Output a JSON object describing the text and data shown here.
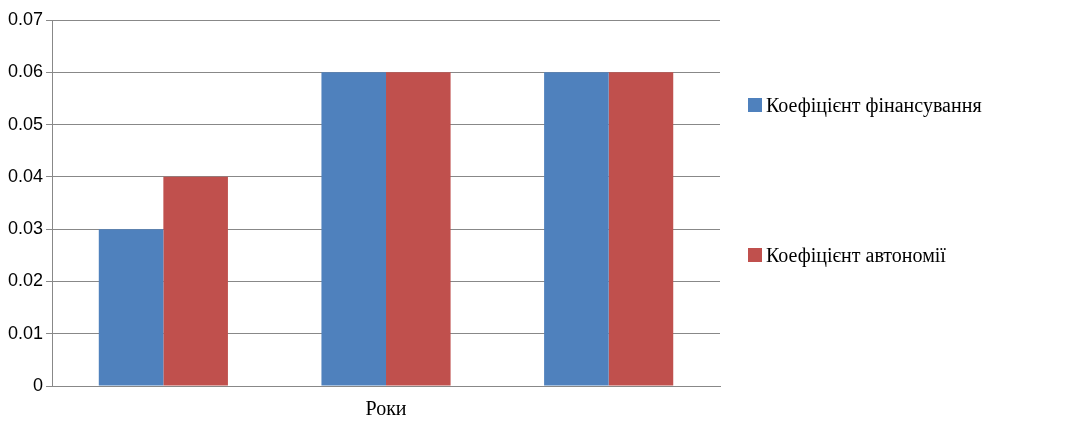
{
  "chart_data": {
    "type": "bar",
    "xlabel": "Роки",
    "categories": [
      null,
      null,
      null
    ],
    "series": [
      {
        "name": "Коефіцієнт фінансування",
        "color": "#4f81bd",
        "values": [
          0.03,
          0.06,
          0.06
        ]
      },
      {
        "name": "Коефіцієнт автономії",
        "color": "#c0504d",
        "values": [
          0.04,
          0.06,
          0.06
        ]
      }
    ],
    "ylim": [
      0,
      0.07
    ],
    "yticks": [
      0,
      0.01,
      0.02,
      0.03,
      0.04,
      0.05,
      0.06,
      0.07
    ],
    "grid": "y",
    "legend": "right"
  }
}
